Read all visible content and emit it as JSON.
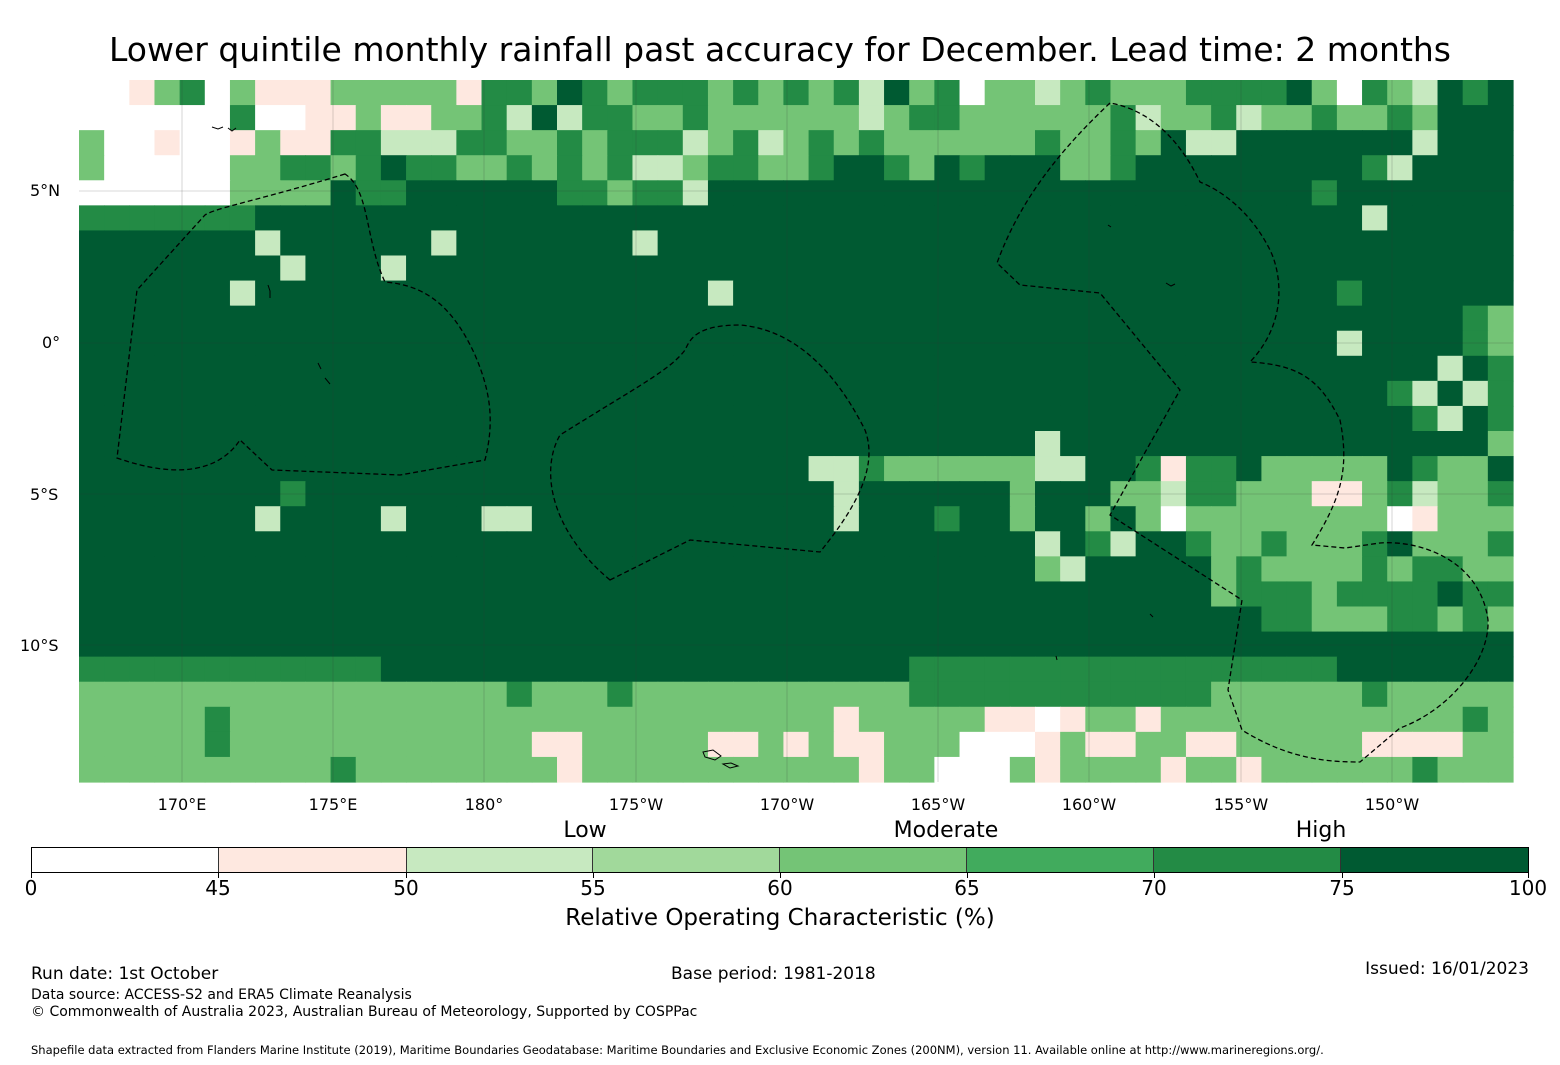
{
  "title": "Lower quintile monthly rainfall past accuracy for December. Lead time: 2 months",
  "map": {
    "lat_labels": [
      "5°N",
      "0°",
      "5°S",
      "10°S"
    ],
    "lon_labels": [
      "170°E",
      "175°E",
      "180°",
      "175°W",
      "170°W",
      "165°W",
      "160°W",
      "155°W",
      "150°W"
    ],
    "grid": {
      "cols": 57,
      "rows": 28,
      "cells": [
        "WWPLMWLPPPLLLLLPMMLDMLMMMLMLMLMTDLMWLLTLMLLLMMMMDLWMLTDMD",
        "WWWWWWMWWPPLPPLLMTDTMMLLMLLLLLLTLMMLLLLLLMTLLMTLLMLLMLDDD",
        "LWWPWWPLPPMMTTTMMLLMLMMMTLMTLMLMLLLLLLMLLMLDTTDDDDDDDTDDD",
        "LWWWWWLLMMLMDMMLLMLMLMTTLMMLLMDDMLDMDDDLLMDDDDDDDDDMTDDDD",
        "WWWWWWLLLLDMMDDDDDDMMLMMTDDDDDDDDDDDDDDDDDDDDDDDDMDDDDDDD",
        "MMMMMMMDDDDDDDDDDDDDDDDDDDDDDDDDDDDDDDDDDDDDDDDDDDDTDDDDD",
        "DDDDDDDTDDDDDDTDDDDDDDTDDDDDDDDDDDDDDDDDDDDDDDDDDDDDDDDDD",
        "DDDDDDDDTDDDTDDDDDDDDDDDDDDDDDDDDDDDDDDDDDDDDDDDDDDDDDDDD",
        "DDDDDDTDDDDDDDDDDDDDDDDDDTDDDDDDDDDDDDDDDDDDDDDDDDMDDDDDD",
        "DDDDDDDDDDDDDDDDDDDDDDDDDDDDDDDDDDDDDDDDDDDDDDDDDDDDDDDML",
        "DDDDDDDDDDDDDDDDDDDDDDDDDDDDDDDDDDDDDDDDDDDDDDDDDDTDDDDML",
        "DDDDDDDDDDDDDDDDDDDDDDDDDDDDDDDDDDDDDDDDDDDDDDDDDDDDDDTDM",
        "DDDDDDDDDDDDDDDDDDDDDDDDDDDDDDDDDDDDDDDDDDDDDDDDDDDDMTDTM",
        "DDDDDDDDDDDDDDDDDDDDDDDDDDDDDDDDDDDDDDDDDDDDDDDDDDDDDMTDM",
        "DDDDDDDDDDDDDDDDDDDDDDDDDDDDDDDDDDDDDDTDDDDDDDDDDDDDDDDDL",
        "DDDDDDDDDDDDDDDDDDDDDDDDDDDDDTTMLLLLLLTTDDMPMMDLLLLLDMLLD",
        "DDDDDDDDMDDDDDDDDDDDDDDDDDDDDDTDDDDDDLDDDLLTMMLLLPPLMTLLM",
        "DDDDDDDTDDDDTDDDTTDDDDDDDDDDDDTDDDMDDLDDLDLWLLLLLLLLWPLLL",
        "DDDDDDDDDDDDDDDDDDDDDDDDDDDDDDDDDDDDDDTDMTDDMLLMLLLMDLLLM",
        "DDDDDDDDDDDDDDDDDDDDDDDDDDDDDDDDDDDDDDLTDDDDDLMLLLLMLMMLL",
        "DDDDDDDDDDDDDDDDDDDDDDDDDDDDDDDDDDDDDDDDDDDDDLMMMLMMMMDMM",
        "DDDDDDDDDDDDDDDDDDDDDDDDDDDDDDDDDDDDDDDDDDDDDDDMMLLLMMLML",
        "DDDDDDDDDDDDDDDDDDDDDDDDDDDDDDDDDDDDDDDDDDDDDDDDDDDDDDDDD",
        "MMMMMMMMMMMMDDDDDDDDDDDDDDDDDDDDDMMMMMMMMMMMMMMMMMDDDDDDD",
        "LLLLLLLLLLLLLLLLLMLLLMLLLLLLLLLLLMMMMMMMMMMMMLLLLLLMLLLLL",
        "LLLLLMLLLLLLLLLLLLLLLLLLLLLLLLPLLLLLPPWPLLPLLLLLLLLLLLLML",
        "LLLLLMLLLLLLLLLLLLPPLLLLLPPLPLPPLLLWWWPLPPLLPPLLLLLPPPPLL",
        "LLLLLLLLLLMLLLLLLLLPLLLLLLLLLLLPLLWWWLPLLLLPLLPLLLLLLMLLL"
      ]
    }
  },
  "colorbar": {
    "category_labels": [
      "Low",
      "Moderate",
      "High"
    ],
    "tick_labels": [
      "0",
      "45",
      "50",
      "55",
      "60",
      "65",
      "70",
      "75",
      "100"
    ],
    "colors": [
      "#ffffff",
      "#fee8e0",
      "#c7e9c0",
      "#a1d99b",
      "#74c476",
      "#41ab5d",
      "#238b45",
      "#005a32"
    ],
    "axis_label": "Relative Operating Characteristic (%)"
  },
  "footer": {
    "run_date": "Run date: 1st October",
    "base_period": "Base period: 1981-2018",
    "issued": "Issued: 16/01/2023",
    "data_source": "Data source: ACCESS-S2 and ERA5 Climate Reanalysis",
    "copyright": "© Commonwealth of Australia 2023, Australian Bureau of Meteorology, Supported by COSPPac",
    "shapefile_note": "Shapefile data extracted from Flanders Marine Institute (2019), Maritime Boundaries Geodatabase: Maritime Boundaries and Exclusive Economic Zones (200NM), version 11. Available online at http://www.marineregions.org/."
  }
}
